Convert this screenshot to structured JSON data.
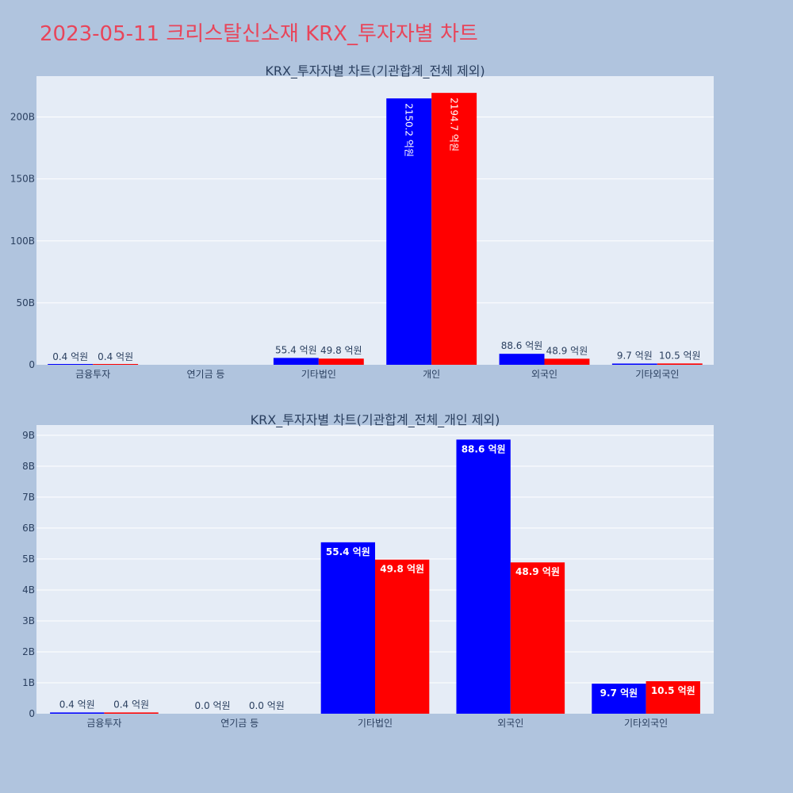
{
  "page_title": "2023-05-11 크리스탈신소재 KRX_투자자별 차트",
  "colors": {
    "series_a": "#0000ff",
    "series_b": "#ff0000",
    "title": "#e8455a"
  },
  "chart_data": [
    {
      "type": "bar",
      "title": "KRX_투자자별 차트(기관합계_전체 제외)",
      "categories": [
        "금융투자",
        "연기금 등",
        "기타법인",
        "개인",
        "외국인",
        "기타외국인"
      ],
      "series": [
        {
          "values": [
            40000000,
            0,
            5540000000,
            215020000000,
            8860000000,
            970000000
          ],
          "labels": [
            "0.4 억원",
            "",
            "55.4 억원",
            "2150.2 억원",
            "88.6 억원",
            "9.7 억원"
          ]
        },
        {
          "values": [
            40000000,
            0,
            4980000000,
            219470000000,
            4890000000,
            1050000000
          ],
          "labels": [
            "0.4 억원",
            "",
            "49.8 억원",
            "2194.7 억원",
            "48.9 억원",
            "10.5 억원"
          ]
        }
      ],
      "yticks": [
        0,
        50000000000,
        100000000000,
        150000000000,
        200000000000
      ],
      "ytick_labels": [
        "0",
        "50B",
        "100B",
        "150B",
        "200B"
      ],
      "ylim": [
        0,
        233000000000
      ],
      "grid": true
    },
    {
      "type": "bar",
      "title": "KRX_투자자별 차트(기관합계_전체_개인 제외)",
      "categories": [
        "금융투자",
        "연기금 등",
        "기타법인",
        "외국인",
        "기타외국인"
      ],
      "series": [
        {
          "values": [
            40000000,
            0,
            5540000000,
            8860000000,
            970000000
          ],
          "labels": [
            "0.4 억원",
            "0.0 억원",
            "55.4 억원",
            "88.6 억원",
            "9.7 억원"
          ]
        },
        {
          "values": [
            40000000,
            0,
            4980000000,
            4890000000,
            1050000000
          ],
          "labels": [
            "0.4 억원",
            "0.0 억원",
            "49.8 억원",
            "48.9 억원",
            "10.5 억원"
          ]
        }
      ],
      "yticks": [
        0,
        1000000000,
        2000000000,
        3000000000,
        4000000000,
        5000000000,
        6000000000,
        7000000000,
        8000000000,
        9000000000
      ],
      "ytick_labels": [
        "0",
        "1B",
        "2B",
        "3B",
        "4B",
        "5B",
        "6B",
        "7B",
        "8B",
        "9B"
      ],
      "ylim": [
        0,
        9330000000
      ],
      "grid": true
    }
  ]
}
